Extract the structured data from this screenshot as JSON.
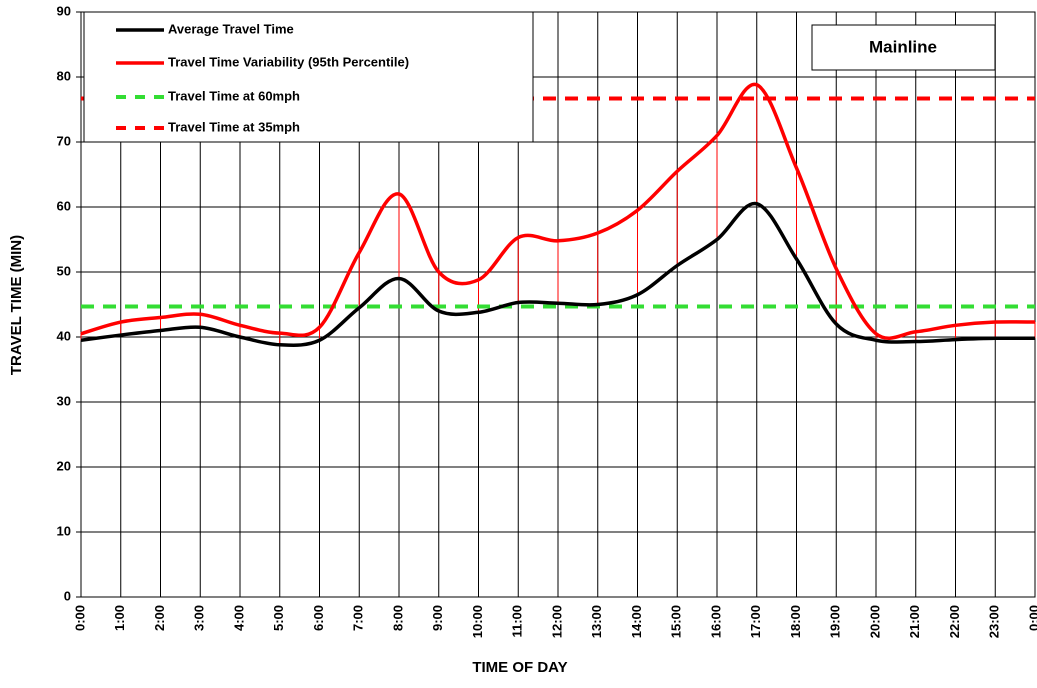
{
  "chart_data": {
    "type": "line",
    "annotation": "Mainline",
    "x_label": "TIME OF DAY",
    "y_label": "TRAVEL TIME (MIN)",
    "categories": [
      "0:00",
      "1:00",
      "2:00",
      "3:00",
      "4:00",
      "5:00",
      "6:00",
      "7:00",
      "8:00",
      "9:00",
      "10:00",
      "11:00",
      "12:00",
      "13:00",
      "14:00",
      "15:00",
      "16:00",
      "17:00",
      "18:00",
      "19:00",
      "20:00",
      "21:00",
      "22:00",
      "23:00",
      "0:00"
    ],
    "series": [
      {
        "name": "Average Travel Time",
        "color": "#000000",
        "dash": false,
        "values": [
          39.5,
          40.3,
          41,
          41.5,
          40,
          38.8,
          39.5,
          44.5,
          49,
          44,
          43.8,
          45.3,
          45.2,
          45,
          46.5,
          51,
          55,
          60.5,
          52,
          42,
          39.5,
          39.3,
          39.6,
          39.8,
          39.8
        ]
      },
      {
        "name": "Travel Time Variability (95th Percentile)",
        "color": "#ff0000",
        "dash": false,
        "values": [
          40.5,
          42.3,
          43,
          43.5,
          41.8,
          40.6,
          41.5,
          53,
          62,
          50,
          48.8,
          55.3,
          54.8,
          56,
          59.5,
          65.5,
          71,
          78.8,
          66,
          50.5,
          40.5,
          40.8,
          41.8,
          42.3,
          42.3
        ]
      },
      {
        "name": "Travel Time at 60mph",
        "color": "#33dd33",
        "dash": true,
        "values": [
          44.7,
          44.7,
          44.7,
          44.7,
          44.7,
          44.7,
          44.7,
          44.7,
          44.7,
          44.7,
          44.7,
          44.7,
          44.7,
          44.7,
          44.7,
          44.7,
          44.7,
          44.7,
          44.7,
          44.7,
          44.7,
          44.7,
          44.7,
          44.7,
          44.7
        ]
      },
      {
        "name": "Travel Time at 35mph",
        "color": "#ff0000",
        "dash": true,
        "values": [
          76.7,
          76.7,
          76.7,
          76.7,
          76.7,
          76.7,
          76.7,
          76.7,
          76.7,
          76.7,
          76.7,
          76.7,
          76.7,
          76.7,
          76.7,
          76.7,
          76.7,
          76.7,
          76.7,
          76.7,
          76.7,
          76.7,
          76.7,
          76.7,
          76.7
        ]
      }
    ],
    "hi_low_lines": true,
    "ylim": [
      0,
      90
    ],
    "yticks": [
      0,
      10,
      20,
      30,
      40,
      50,
      60,
      70,
      80,
      90
    ],
    "grid": true
  }
}
